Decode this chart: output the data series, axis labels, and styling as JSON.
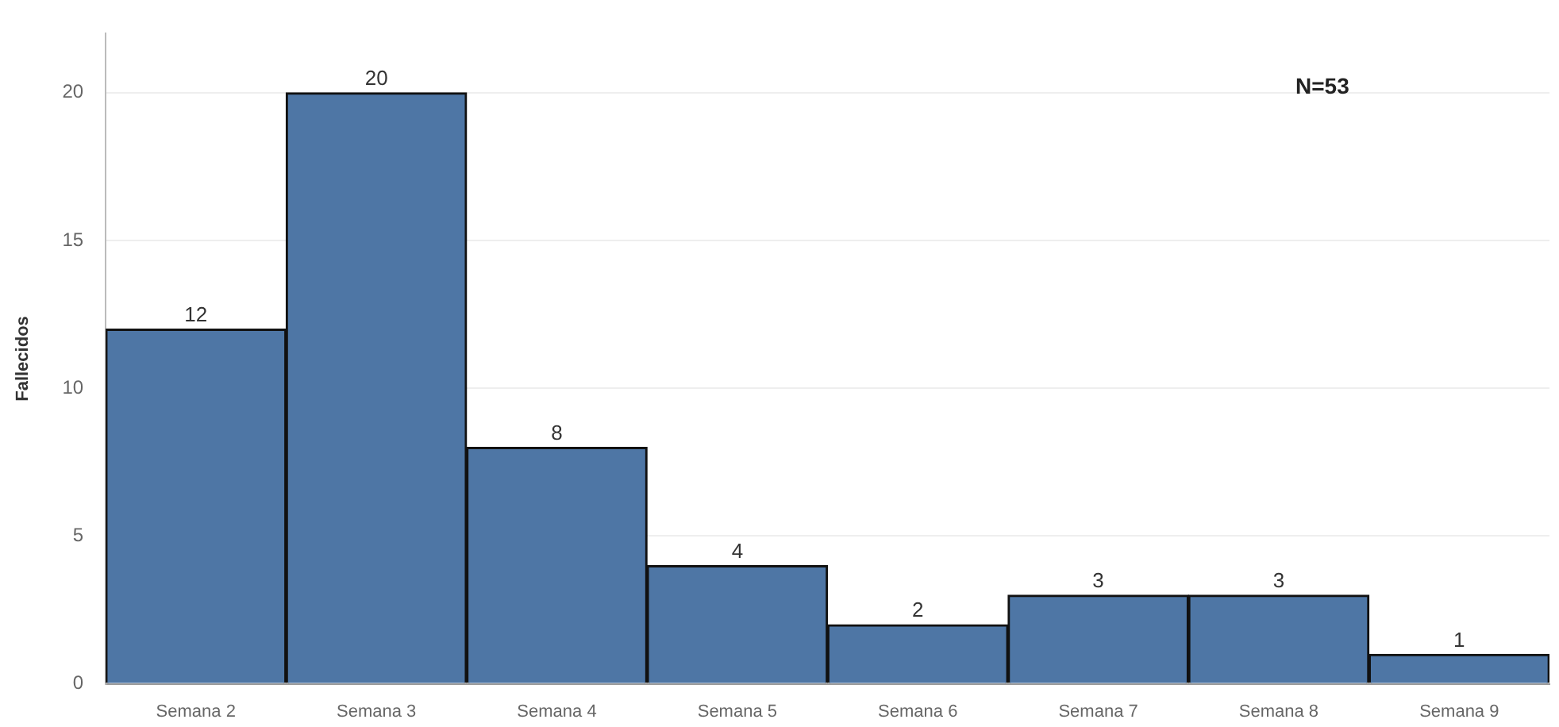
{
  "chart_data": {
    "type": "bar",
    "ylabel": "Fallecidos",
    "categories": [
      "Semana 2",
      "Semana 3",
      "Semana 4",
      "Semana 5",
      "Semana 6",
      "Semana 7",
      "Semana 8",
      "Semana 9"
    ],
    "values": [
      12,
      20,
      8,
      4,
      2,
      3,
      3,
      1
    ],
    "color": "#4e76a5",
    "ylim": [
      0,
      22
    ],
    "yticks": [
      0,
      5,
      10,
      15,
      20
    ],
    "grid": "y",
    "data_labels": true,
    "legend": false,
    "annotations": [
      "N=53"
    ]
  }
}
